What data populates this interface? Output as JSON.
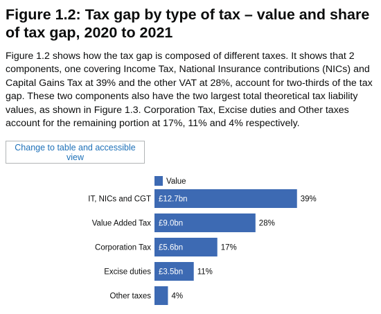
{
  "header": {
    "title": "Figure 1.2: Tax gap by type of tax – value and share of tax gap, 2020 to 2021"
  },
  "description": "Figure 1.2 shows how the tax gap is composed of different taxes. It shows that 2 components, one covering Income Tax, National Insurance contributions (NICs) and Capital Gains Tax at 39% and the other VAT at 28%, account for two-thirds of the tax gap. These two components also have the two largest total theoretical tax liability values, as shown in Figure 1.3. Corporation Tax, Excise duties and Other taxes account for the remaining portion at 17%, 11% and 4% respectively.",
  "toggle_button": {
    "label": "Change to table and accessible view"
  },
  "colors": {
    "bar": "#3d6ab3",
    "link": "#1d70b8"
  },
  "chart_data": {
    "type": "bar",
    "orientation": "horizontal",
    "legend": [
      "Value"
    ],
    "legend_position": "top-left",
    "categories": [
      "IT, NICs and CGT",
      "Value Added Tax",
      "Corporation Tax",
      "Excise duties",
      "Other taxes"
    ],
    "series": [
      {
        "name": "Value",
        "values": [
          12.7,
          9.0,
          5.6,
          3.5,
          1.2
        ],
        "value_labels": [
          "£12.7bn",
          "£9.0bn",
          "£5.6bn",
          "£3.5bn",
          ""
        ],
        "share_labels": [
          "39%",
          "28%",
          "17%",
          "11%",
          "4%"
        ]
      }
    ],
    "unit": "£bn",
    "grid": false
  }
}
